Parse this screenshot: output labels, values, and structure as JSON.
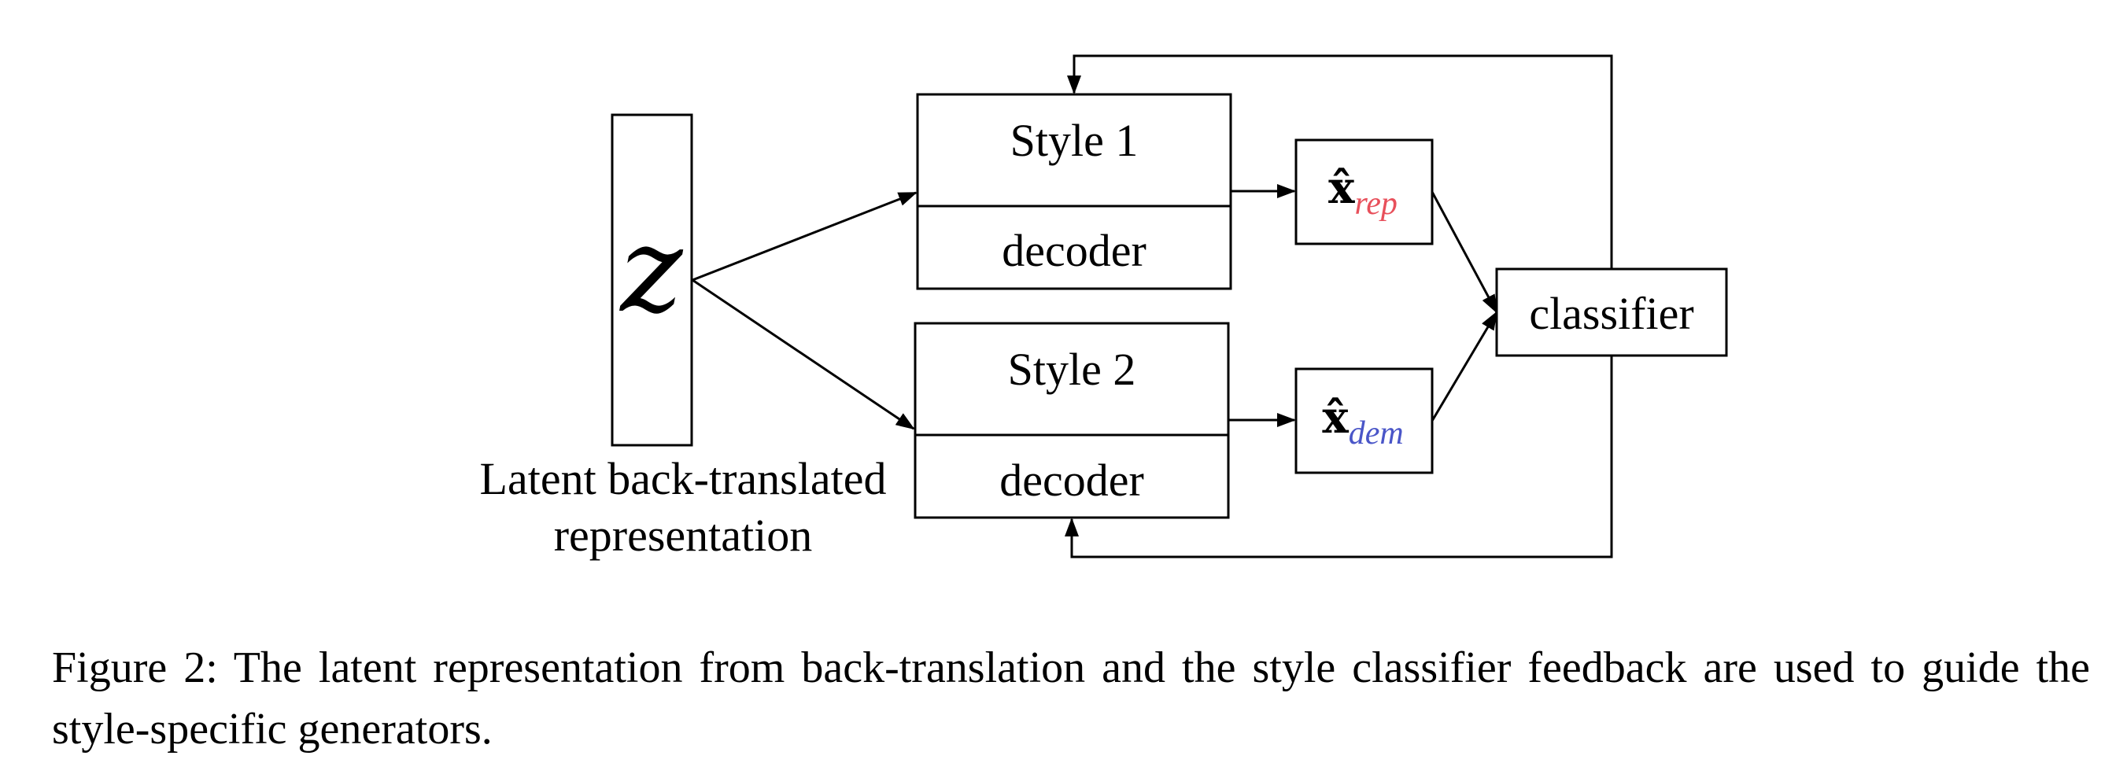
{
  "diagram": {
    "latent": {
      "symbol": "z",
      "caption_line1": "Latent back-translated",
      "caption_line2": "representation"
    },
    "decoder_1": {
      "style": "Style 1",
      "part": "decoder"
    },
    "decoder_2": {
      "style": "Style 2",
      "part": "decoder"
    },
    "output_rep": {
      "symbol": "x̂",
      "subscript": "rep",
      "subscript_color": "#e8505b"
    },
    "output_dem": {
      "symbol": "x̂",
      "subscript": "dem",
      "subscript_color": "#4a56c8"
    },
    "classifier": {
      "label": "classifier"
    }
  },
  "caption": {
    "text": "Figure 2: The latent representation from back-translation and the style classifier feedback are used to guide the style-specific generators."
  }
}
